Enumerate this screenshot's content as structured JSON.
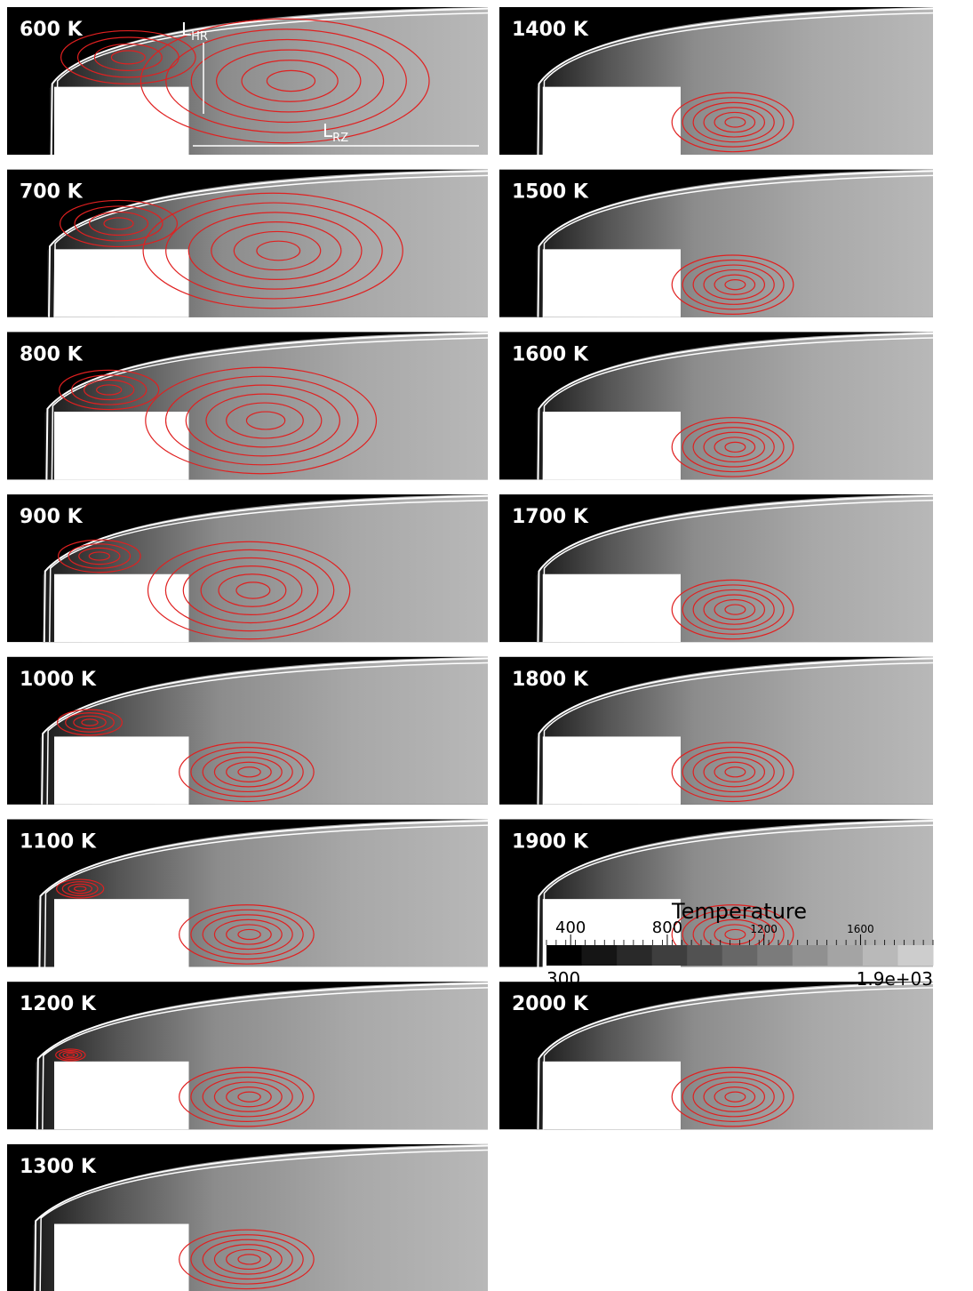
{
  "panels": [
    {
      "label": "600 K"
    },
    {
      "label": "700 K"
    },
    {
      "label": "800 K"
    },
    {
      "label": "900 K"
    },
    {
      "label": "1000 K"
    },
    {
      "label": "1100 K"
    },
    {
      "label": "1200 K"
    },
    {
      "label": "1300 K"
    },
    {
      "label": "1400 K"
    },
    {
      "label": "1500 K"
    },
    {
      "label": "1600 K"
    },
    {
      "label": "1700 K"
    },
    {
      "label": "1800 K"
    },
    {
      "label": "1900 K"
    },
    {
      "label": "2000 K"
    }
  ],
  "annotations": {
    "l_hr": {
      "main": "L",
      "sub": "HR"
    },
    "l_rz": {
      "main": "L",
      "sub": "RZ"
    }
  },
  "colorbar": {
    "title": "Temperature",
    "range": [
      300,
      {
        "value": 1900,
        "label": "1.9e+03"
      }
    ],
    "ticks": [
      400,
      800,
      1200,
      1600
    ]
  }
}
